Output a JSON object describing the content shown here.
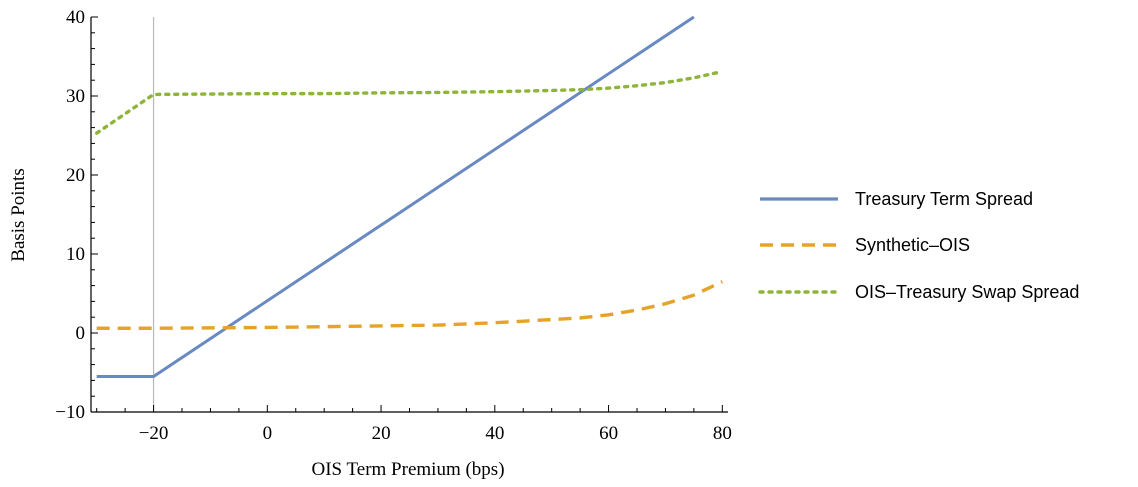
{
  "chart_data": {
    "type": "line",
    "title": "",
    "xlabel": "OIS Term Premium (bps)",
    "ylabel": "Basis Points",
    "xlim": [
      -31,
      81
    ],
    "ylim": [
      -10,
      40
    ],
    "x_ticks": [
      -20,
      0,
      20,
      40,
      60,
      80
    ],
    "x_tick_labels": [
      "−20",
      "0",
      "20",
      "40",
      "60",
      "80"
    ],
    "y_ticks": [
      -10,
      0,
      10,
      20,
      30,
      40
    ],
    "y_tick_labels": [
      "−10",
      "0",
      "10",
      "20",
      "30",
      "40"
    ],
    "vertical_reference_line": -20,
    "grid": false,
    "legend_position": "right",
    "series": [
      {
        "name": "Treasury Term Spread",
        "color": "#6889c1",
        "style": "solid",
        "points": [
          [
            -30,
            -5.5
          ],
          [
            -20,
            -5.5
          ],
          [
            75,
            40
          ]
        ]
      },
      {
        "name": "Synthetic–OIS",
        "color": "#e5a429",
        "style": "dashed",
        "points": [
          [
            -30,
            0.6
          ],
          [
            -20,
            0.6
          ],
          [
            -10,
            0.65
          ],
          [
            0,
            0.7
          ],
          [
            10,
            0.8
          ],
          [
            20,
            0.9
          ],
          [
            30,
            1.0
          ],
          [
            40,
            1.3
          ],
          [
            45,
            1.5
          ],
          [
            50,
            1.7
          ],
          [
            55,
            1.9
          ],
          [
            60,
            2.3
          ],
          [
            65,
            2.9
          ],
          [
            70,
            3.7
          ],
          [
            75,
            4.8
          ],
          [
            80,
            6.5
          ]
        ]
      },
      {
        "name": "OIS–Treasury Swap Spread",
        "color": "#8fb43a",
        "style": "dotted",
        "points": [
          [
            -30,
            25.3
          ],
          [
            -20,
            30.2
          ],
          [
            -10,
            30.25
          ],
          [
            0,
            30.3
          ],
          [
            10,
            30.3
          ],
          [
            20,
            30.4
          ],
          [
            30,
            30.45
          ],
          [
            40,
            30.55
          ],
          [
            50,
            30.7
          ],
          [
            55,
            30.8
          ],
          [
            60,
            31.0
          ],
          [
            65,
            31.3
          ],
          [
            70,
            31.7
          ],
          [
            75,
            32.3
          ],
          [
            80,
            33.1
          ]
        ]
      }
    ]
  }
}
